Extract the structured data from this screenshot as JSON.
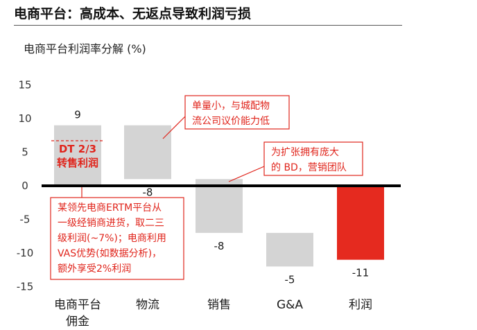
{
  "header": {
    "title": "电商平台：高成本、无返点导致利润亏损",
    "subtitle": "电商平台利润率分解 (%)"
  },
  "chart_data": {
    "type": "bar",
    "subtype": "waterfall",
    "categories": [
      [
        "电商平台",
        "佣金"
      ],
      [
        "物流"
      ],
      [
        "销售"
      ],
      [
        "G&A"
      ],
      [
        "利润"
      ]
    ],
    "values": [
      9,
      -8,
      -8,
      -5,
      -11
    ],
    "value_labels": [
      "9",
      "-8",
      "-8",
      "-5",
      "-11"
    ],
    "yticks": [
      15,
      10,
      5,
      0,
      -5,
      -10,
      -15
    ],
    "ylim": [
      -15,
      15
    ],
    "colors": {
      "bar": "#d4d4d4",
      "result": "#e52a1f",
      "accent": "#e0241b",
      "axis": "#000000"
    },
    "in_bar_label": {
      "lines": [
        "DT 2/3",
        "转售利润"
      ],
      "marker_value": 6.7
    },
    "annotations": [
      {
        "lines": [
          "单量小，与城配物",
          "流公司议价能力低"
        ]
      },
      {
        "lines": [
          "为扩张拥有庞大",
          "的 BD，营销团队"
        ]
      },
      {
        "lines": [
          "某领先电商ERTM平台从",
          "一级经销商进货，取二三",
          "级利润(~7%)；电商利用",
          "VAS优势(如数据分析)，",
          "额外享受2%利润"
        ]
      }
    ]
  }
}
